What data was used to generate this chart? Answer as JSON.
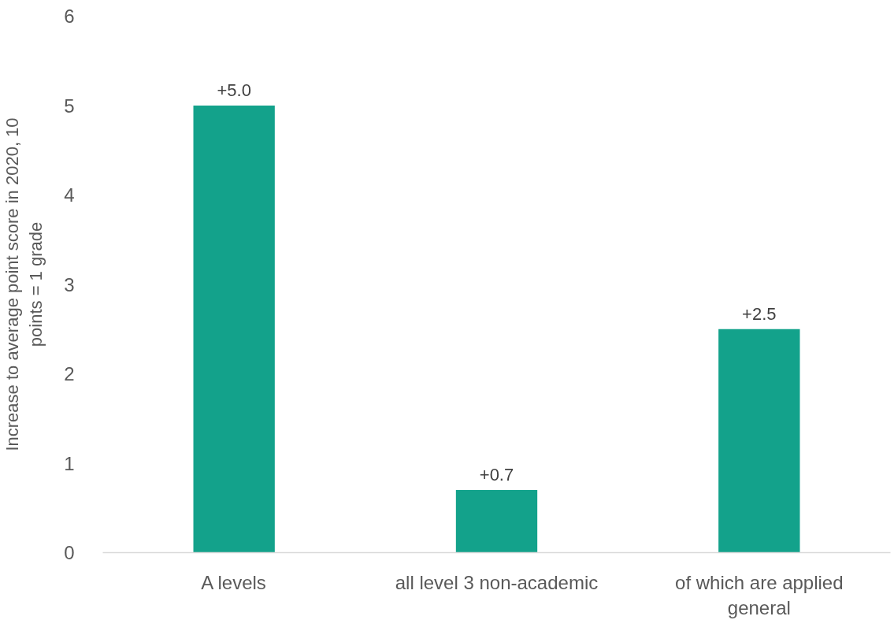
{
  "chart_data": {
    "type": "bar",
    "ylabel": "Increase to average point score in 2020, 10 points = 1 grade",
    "categories": [
      "A levels",
      "all level 3 non-academic",
      "of which are applied general"
    ],
    "values": [
      5.0,
      0.7,
      2.5
    ],
    "value_labels": [
      "+5.0",
      "+0.7",
      "+2.5"
    ],
    "color": "#13a28b",
    "ylim": [
      0,
      6
    ],
    "yticks": [
      0,
      1,
      2,
      3,
      4,
      5,
      6
    ],
    "grid": false
  }
}
